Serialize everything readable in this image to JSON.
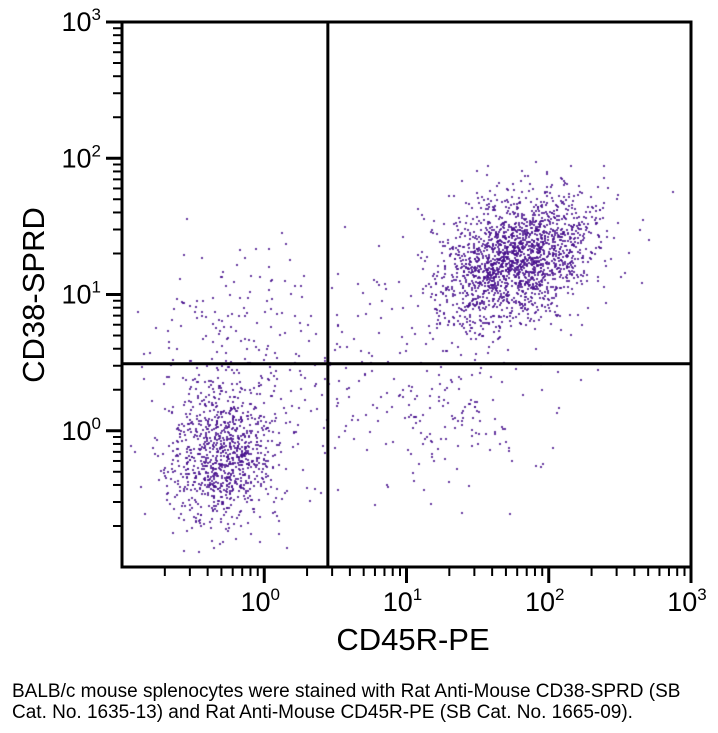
{
  "caption": {
    "lines": [
      "BALB/c mouse splenocytes were stained with Rat Anti-Mouse CD38-SPRD (SB",
      "Cat. No. 1635-13) and Rat Anti-Mouse CD45R-PE (SB Cat. No. 1665-09)."
    ]
  },
  "chart_data": {
    "type": "scatter",
    "subtype": "flow-cytometry-dot-plot",
    "xlabel": "CD45R-PE",
    "ylabel": "CD38-SPRD",
    "x_scale": "log",
    "y_scale": "log",
    "xlim": [
      0.1,
      1000
    ],
    "ylim": [
      0.1,
      1000
    ],
    "x_tick_exponents": [
      0,
      1,
      2,
      3
    ],
    "y_tick_exponents": [
      0,
      1,
      2,
      3
    ],
    "tick_base": "10",
    "grid": false,
    "legend": false,
    "quadrant_gates": {
      "x": 2.8,
      "y": 3.1
    },
    "dot_color": "#47108c",
    "axis_color": "#000000",
    "clusters": [
      {
        "name": "double-negative-splenocytes",
        "n": 950,
        "center": [
          0.5,
          0.68
        ],
        "sigma_decades": [
          0.21,
          0.27
        ],
        "rho": 0.1
      },
      {
        "name": "CD45R-CD38-double-positive-B-cells",
        "n": 1900,
        "center": [
          59,
          18
        ],
        "sigma_decades": [
          0.28,
          0.24
        ],
        "rho": 0.35
      },
      {
        "name": "CD38-single-positive",
        "n": 170,
        "center": [
          0.63,
          5.2
        ],
        "sigma_decades": [
          0.38,
          0.32
        ],
        "rho": 0.0
      },
      {
        "name": "CD45R-single-positive",
        "n": 150,
        "center": [
          18,
          1.26
        ],
        "sigma_decades": [
          0.38,
          0.3
        ],
        "rho": 0.1
      },
      {
        "name": "intermediate-scatter",
        "n": 110,
        "center": [
          3.5,
          2.8
        ],
        "sigma_decades": [
          0.45,
          0.5
        ],
        "rho": 0.3
      }
    ]
  }
}
